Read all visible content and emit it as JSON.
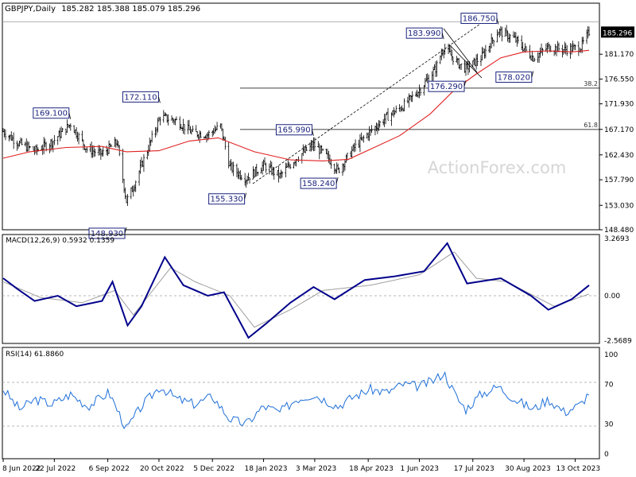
{
  "header": {
    "symbol_label": "GBPJPY,Daily",
    "ohlc": "185.282 185.388 185.079 185.296"
  },
  "watermark": "ActionForex.com",
  "colors": {
    "price_bars": "#000000",
    "moving_average": "#e02020",
    "macd_line": "#00008b",
    "macd_signal": "#a0a0a0",
    "rsi_line": "#1e6fd8",
    "annotation_box": "#1a237e",
    "last_price_bg": "#000000",
    "grid_dashed": "#a0a0a0"
  },
  "chart_data": [
    {
      "type": "ohlc",
      "panel": "price",
      "ylim": [
        148.48,
        188.9
      ],
      "y_ticks": [
        "185.296",
        "181.170",
        "176.550",
        "171.930",
        "167.170",
        "162.430",
        "157.790",
        "153.030",
        "148.480"
      ],
      "last_price": "185.296",
      "overlay_series": {
        "name": "",
        "type": "line"
      },
      "fib_levels": [
        {
          "label": "38.2",
          "price": 174.85
        },
        {
          "label": "61.8",
          "price": 167.15
        }
      ],
      "swing_labels": [
        {
          "text": "169.100",
          "date": "2022-08-05",
          "price": 169.1
        },
        {
          "text": "172.110",
          "date": "2022-10-21",
          "price": 172.11
        },
        {
          "text": "148.930",
          "date": "2022-09-22",
          "price": 148.93
        },
        {
          "text": "155.330",
          "date": "2023-01-03",
          "price": 155.33
        },
        {
          "text": "165.990",
          "date": "2023-03-02",
          "price": 165.99
        },
        {
          "text": "158.240",
          "date": "2023-03-23",
          "price": 158.24
        },
        {
          "text": "183.990",
          "date": "2023-06-22",
          "price": 183.99
        },
        {
          "text": "176.290",
          "date": "2023-07-11",
          "price": 176.29
        },
        {
          "text": "186.750",
          "date": "2023-08-08",
          "price": 186.75
        },
        {
          "text": "178.020",
          "date": "2023-09-07",
          "price": 178.02
        }
      ],
      "x_ticks": [
        "8 Jun 2022",
        "22 Jul 2022",
        "6 Sep 2022",
        "20 Oct 2022",
        "5 Dec 2022",
        "18 Jan 2023",
        "3 Mar 2023",
        "18 Apr 2023",
        "1 Jun 2023",
        "17 Jul 2023",
        "30 Aug 2023",
        "13 Oct 2023"
      ],
      "price_path": [
        [
          "2022-06-08",
          166.8
        ],
        [
          "2022-06-22",
          164.5
        ],
        [
          "2022-07-06",
          163.2
        ],
        [
          "2022-07-20",
          164.8
        ],
        [
          "2022-08-05",
          168.2
        ],
        [
          "2022-08-19",
          163.5
        ],
        [
          "2022-09-01",
          162.6
        ],
        [
          "2022-09-14",
          164.8
        ],
        [
          "2022-09-22",
          153.8
        ],
        [
          "2022-09-28",
          156.5
        ],
        [
          "2022-10-06",
          161.0
        ],
        [
          "2022-10-21",
          169.5
        ],
        [
          "2022-11-04",
          168.8
        ],
        [
          "2022-11-18",
          166.5
        ],
        [
          "2022-12-01",
          166.2
        ],
        [
          "2022-12-12",
          167.8
        ],
        [
          "2022-12-20",
          160.2
        ],
        [
          "2023-01-03",
          158.0
        ],
        [
          "2023-01-18",
          160.5
        ],
        [
          "2023-02-01",
          158.5
        ],
        [
          "2023-02-15",
          161.8
        ],
        [
          "2023-03-02",
          164.3
        ],
        [
          "2023-03-14",
          162.0
        ],
        [
          "2023-03-23",
          159.5
        ],
        [
          "2023-04-06",
          163.8
        ],
        [
          "2023-04-20",
          166.8
        ],
        [
          "2023-05-04",
          169.5
        ],
        [
          "2023-05-18",
          171.5
        ],
        [
          "2023-06-01",
          174.5
        ],
        [
          "2023-06-15",
          178.5
        ],
        [
          "2023-06-22",
          182.5
        ],
        [
          "2023-07-04",
          179.5
        ],
        [
          "2023-07-11",
          178.5
        ],
        [
          "2023-07-24",
          180.5
        ],
        [
          "2023-08-08",
          185.5
        ],
        [
          "2023-08-22",
          184.0
        ],
        [
          "2023-09-07",
          180.5
        ],
        [
          "2023-09-20",
          182.5
        ],
        [
          "2023-10-04",
          182.0
        ],
        [
          "2023-10-18",
          182.5
        ],
        [
          "2023-10-25",
          185.3
        ]
      ],
      "ma_path": [
        [
          "2022-06-08",
          161.8
        ],
        [
          "2022-07-01",
          163.0
        ],
        [
          "2022-08-01",
          163.8
        ],
        [
          "2022-09-01",
          164.0
        ],
        [
          "2022-09-22",
          163.0
        ],
        [
          "2022-10-20",
          163.2
        ],
        [
          "2022-11-15",
          165.0
        ],
        [
          "2022-12-10",
          165.6
        ],
        [
          "2023-01-10",
          163.0
        ],
        [
          "2023-02-10",
          161.5
        ],
        [
          "2023-03-10",
          161.3
        ],
        [
          "2023-04-01",
          161.6
        ],
        [
          "2023-04-20",
          163.5
        ],
        [
          "2023-05-15",
          166.0
        ],
        [
          "2023-06-10",
          170.0
        ],
        [
          "2023-07-01",
          174.5
        ],
        [
          "2023-07-20",
          177.5
        ],
        [
          "2023-08-10",
          180.5
        ],
        [
          "2023-08-30",
          181.6
        ],
        [
          "2023-09-20",
          181.8
        ],
        [
          "2023-10-10",
          181.6
        ],
        [
          "2023-10-25",
          181.9
        ]
      ]
    },
    {
      "type": "line",
      "panel": "macd",
      "title": "MACD(12,26,9) 0.5932 0.1359",
      "ylim": [
        -2.5689,
        3.2693
      ],
      "y_ticks": [
        "3.2693",
        "0.00",
        "-2.5689"
      ],
      "series": [
        {
          "name": "",
          "role": "macd",
          "points": [
            [
              "2022-06-08",
              1.0
            ],
            [
              "2022-06-20",
              0.4
            ],
            [
              "2022-07-05",
              -0.3
            ],
            [
              "2022-07-25",
              0.0
            ],
            [
              "2022-08-10",
              -0.6
            ],
            [
              "2022-09-01",
              -0.3
            ],
            [
              "2022-09-10",
              0.8
            ],
            [
              "2022-09-23",
              -1.7
            ],
            [
              "2022-10-05",
              -0.6
            ],
            [
              "2022-10-25",
              2.2
            ],
            [
              "2022-11-10",
              0.6
            ],
            [
              "2022-12-01",
              0.0
            ],
            [
              "2022-12-15",
              0.2
            ],
            [
              "2023-01-05",
              -2.4
            ],
            [
              "2023-01-20",
              -1.6
            ],
            [
              "2023-02-10",
              -0.4
            ],
            [
              "2023-03-02",
              0.5
            ],
            [
              "2023-03-20",
              -0.2
            ],
            [
              "2023-04-15",
              0.9
            ],
            [
              "2023-05-10",
              1.1
            ],
            [
              "2023-06-05",
              1.4
            ],
            [
              "2023-06-25",
              3.0
            ],
            [
              "2023-07-12",
              0.7
            ],
            [
              "2023-08-10",
              1.0
            ],
            [
              "2023-09-05",
              0.0
            ],
            [
              "2023-09-20",
              -0.8
            ],
            [
              "2023-10-10",
              -0.2
            ],
            [
              "2023-10-25",
              0.6
            ]
          ]
        },
        {
          "name": "",
          "role": "signal",
          "points": [
            [
              "2022-06-08",
              0.8
            ],
            [
              "2022-07-10",
              -0.1
            ],
            [
              "2022-08-15",
              -0.4
            ],
            [
              "2022-09-12",
              0.3
            ],
            [
              "2022-09-28",
              -1.1
            ],
            [
              "2022-10-30",
              1.6
            ],
            [
              "2022-11-20",
              0.8
            ],
            [
              "2022-12-20",
              0.0
            ],
            [
              "2023-01-10",
              -1.8
            ],
            [
              "2023-02-10",
              -0.8
            ],
            [
              "2023-03-10",
              0.3
            ],
            [
              "2023-04-20",
              0.6
            ],
            [
              "2023-06-01",
              1.2
            ],
            [
              "2023-07-01",
              2.5
            ],
            [
              "2023-07-20",
              1.0
            ],
            [
              "2023-08-15",
              0.8
            ],
            [
              "2023-09-25",
              -0.6
            ],
            [
              "2023-10-25",
              0.1
            ]
          ]
        }
      ]
    },
    {
      "type": "line",
      "panel": "rsi",
      "title": "RSI(14) 61.8860",
      "ylim": [
        0,
        100
      ],
      "y_ticks": [
        "100",
        "70",
        "30",
        "0"
      ],
      "levels": [
        70,
        30
      ],
      "series": [
        {
          "name": "",
          "points": [
            [
              "2022-06-08",
              65
            ],
            [
              "2022-06-22",
              45
            ],
            [
              "2022-07-06",
              55
            ],
            [
              "2022-07-20",
              50
            ],
            [
              "2022-08-05",
              60
            ],
            [
              "2022-08-20",
              48
            ],
            [
              "2022-09-07",
              62
            ],
            [
              "2022-09-22",
              25
            ],
            [
              "2022-10-05",
              48
            ],
            [
              "2022-10-21",
              68
            ],
            [
              "2022-11-05",
              55
            ],
            [
              "2022-11-20",
              50
            ],
            [
              "2022-12-05",
              58
            ],
            [
              "2022-12-20",
              35
            ],
            [
              "2023-01-03",
              30
            ],
            [
              "2023-01-18",
              48
            ],
            [
              "2023-02-01",
              42
            ],
            [
              "2023-02-15",
              55
            ],
            [
              "2023-03-02",
              60
            ],
            [
              "2023-03-23",
              48
            ],
            [
              "2023-04-06",
              58
            ],
            [
              "2023-04-20",
              65
            ],
            [
              "2023-05-04",
              62
            ],
            [
              "2023-05-18",
              70
            ],
            [
              "2023-06-01",
              68
            ],
            [
              "2023-06-15",
              75
            ],
            [
              "2023-06-22",
              82
            ],
            [
              "2023-07-04",
              55
            ],
            [
              "2023-07-11",
              45
            ],
            [
              "2023-07-24",
              60
            ],
            [
              "2023-08-08",
              68
            ],
            [
              "2023-08-22",
              55
            ],
            [
              "2023-09-07",
              45
            ],
            [
              "2023-09-20",
              55
            ],
            [
              "2023-10-04",
              42
            ],
            [
              "2023-10-18",
              50
            ],
            [
              "2023-10-25",
              62
            ]
          ]
        }
      ]
    }
  ]
}
